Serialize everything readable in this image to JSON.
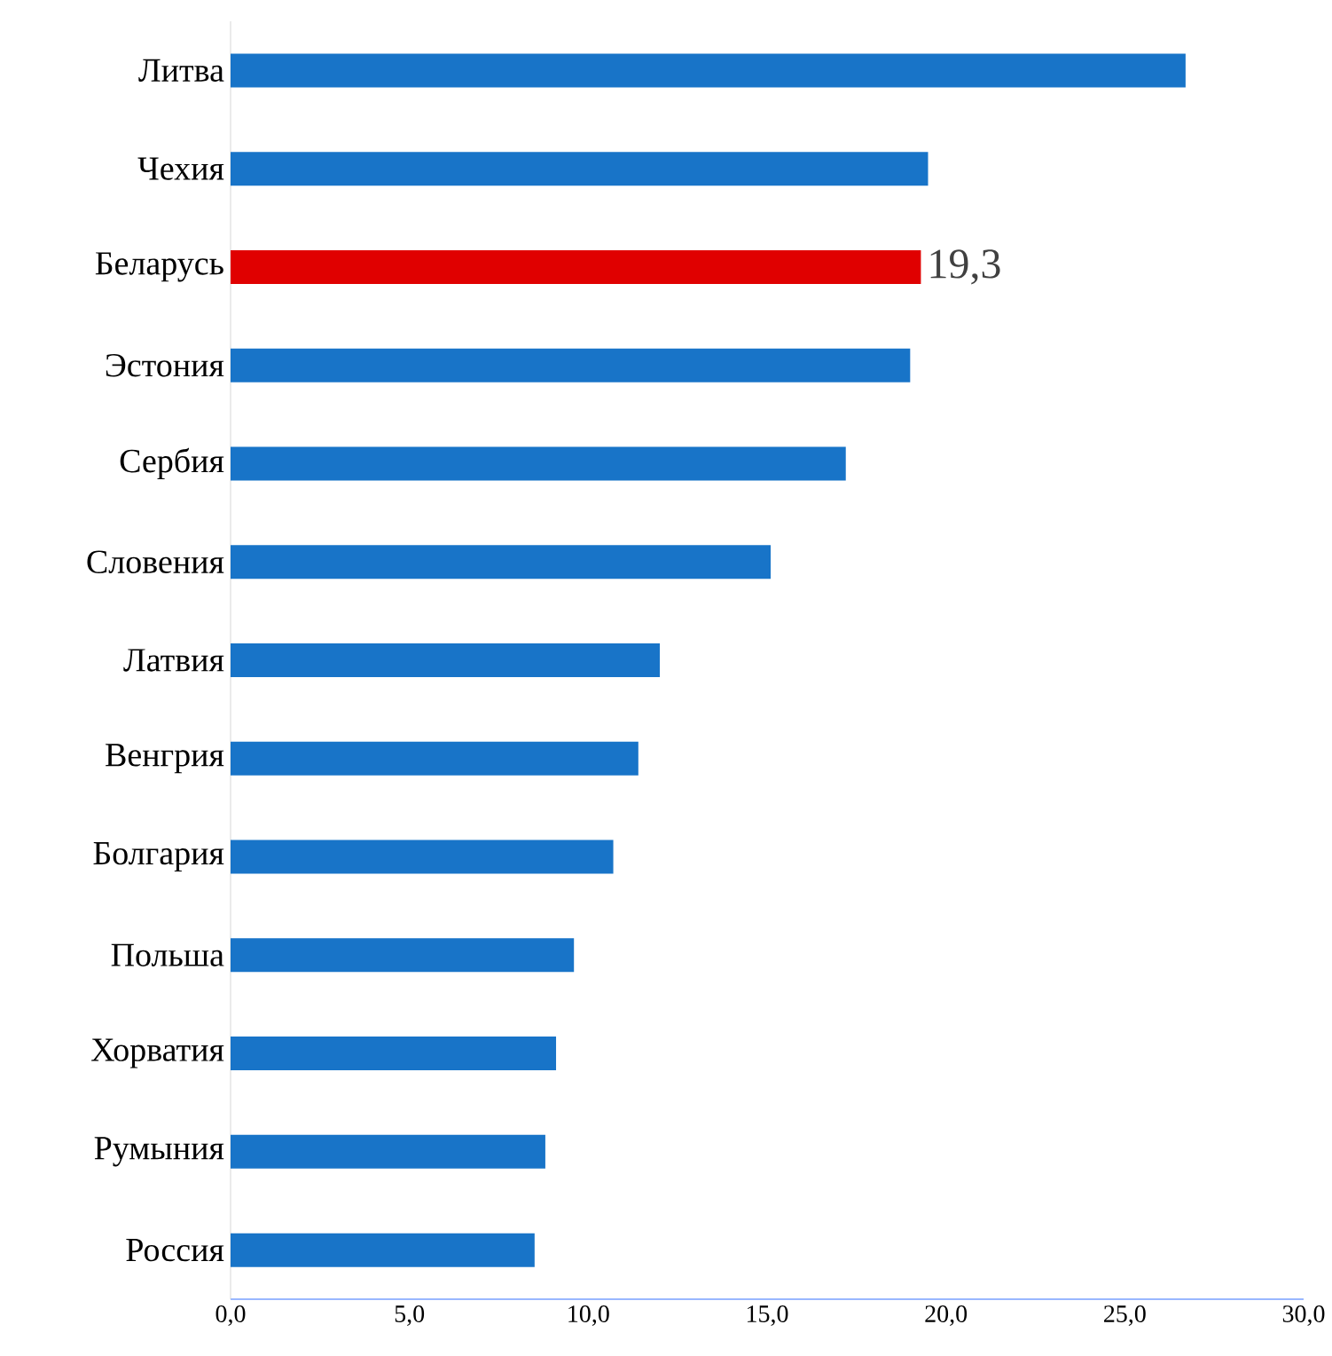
{
  "chart_data": {
    "type": "bar",
    "orientation": "horizontal",
    "categories": [
      "Литва",
      "Чехия",
      "Беларусь",
      "Эстония",
      "Сербия",
      "Словения",
      "Латвия",
      "Венгрия",
      "Болгария",
      "Польша",
      "Хорватия",
      "Румыния",
      "Россия"
    ],
    "values": [
      26.7,
      19.5,
      19.3,
      19.0,
      17.2,
      15.1,
      12.0,
      11.4,
      10.7,
      9.6,
      9.1,
      8.8,
      8.5
    ],
    "colors": [
      "#1874c8",
      "#1874c8",
      "#e00000",
      "#1874c8",
      "#1874c8",
      "#1874c8",
      "#1874c8",
      "#1874c8",
      "#1874c8",
      "#1874c8",
      "#1874c8",
      "#1874c8",
      "#1874c8"
    ],
    "value_labels": [
      null,
      null,
      "19,3",
      null,
      null,
      null,
      null,
      null,
      null,
      null,
      null,
      null,
      null
    ],
    "xlim": [
      0,
      30
    ],
    "xticks": [
      {
        "value": 0,
        "label": "0,0"
      },
      {
        "value": 5,
        "label": "5,0"
      },
      {
        "value": 10,
        "label": "10,0"
      },
      {
        "value": 15,
        "label": "15,0"
      },
      {
        "value": 20,
        "label": "20,0"
      },
      {
        "value": 25,
        "label": "25,0"
      },
      {
        "value": 30,
        "label": "30,0"
      }
    ],
    "grid": false
  }
}
